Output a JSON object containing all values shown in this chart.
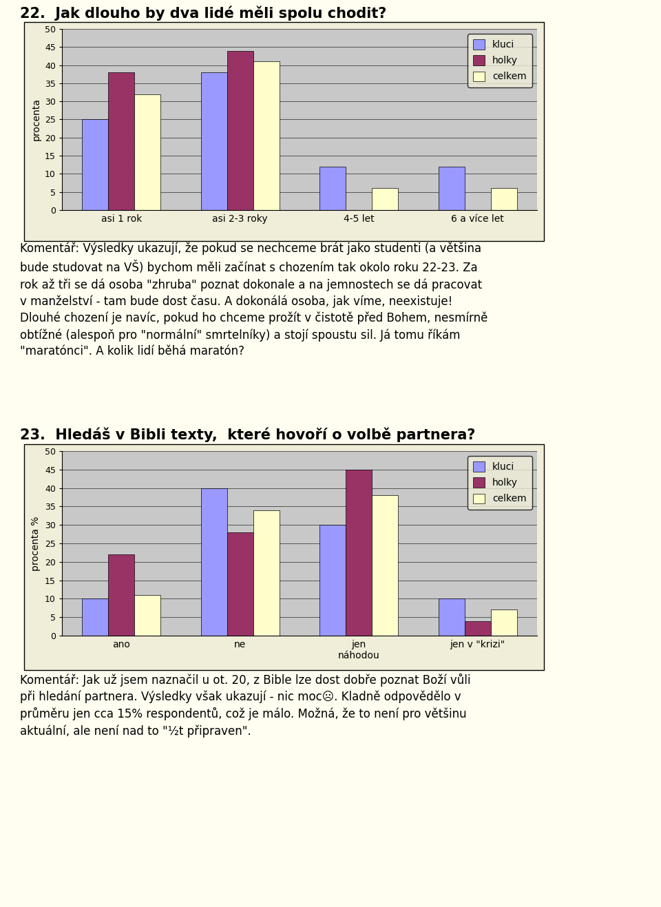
{
  "chart1": {
    "title": "22.  Jak dlouho by dva lidé měli spolu chodit?",
    "categories": [
      "asi 1 rok",
      "asi 2-3 roky",
      "4-5 let",
      "6 a více let"
    ],
    "kluci": [
      25,
      38,
      12,
      12
    ],
    "holky": [
      38,
      44,
      0,
      0
    ],
    "celkem": [
      32,
      41,
      6,
      6
    ],
    "ylabel": "procenta",
    "ylim": [
      0,
      50
    ],
    "yticks": [
      0,
      5,
      10,
      15,
      20,
      25,
      30,
      35,
      40,
      45,
      50
    ]
  },
  "chart2": {
    "title": "23.  Hledáš v Bibli texty,  které hovoří o volbě partnera?",
    "categories": [
      "ano",
      "ne",
      "jen\nnáhodou",
      "jen v \"krizi\""
    ],
    "kluci": [
      10,
      40,
      30,
      10
    ],
    "holky": [
      22,
      28,
      45,
      4
    ],
    "celkem": [
      11,
      34,
      38,
      7
    ],
    "ylabel": "procenta %",
    "ylim": [
      0,
      50
    ],
    "yticks": [
      0,
      5,
      10,
      15,
      20,
      25,
      30,
      35,
      40,
      45,
      50
    ]
  },
  "comment1": "Komentář: Výsledky ukazují, že pokud se nechceme brát jako studenti (a většina\nbude studovat na VŠ) bychom měli začínat s chozením tak okolo roku 22-23. Za\nrok až tři se dá osoba \"zhruba\" poznat dokonale a na jemnostech se dá pracovat\nv manželství - tam bude dost času. A dokonálá osoba, jak víme, neexistuje!\nDlouhé chození je navíc, pokud ho chceme prožít v čistotě před Bohem, nesmírně\nobtížné (alespoň pro \"normální\" smrtelníky) a stojí spoustu sil. Já tomu říkám\n\"maratónci\". A kolik lidí běhá maratón?",
  "comment2": "Komentář: Jak už jsem naznačil u ot. 20, z Bible lze dost dobře poznat Boží vůli\npři hledání partnera. Výsledky však ukazují - nic moc☹. Kladně odpovědělo v\nprůměru jen cca 15% respondentů, což je málo. Možná, že to není pro většinu\naktuální, ale není nad to \"½t připraven\".",
  "bar_colors": {
    "kluci": "#9999FF",
    "holky": "#993366",
    "celkem": "#FFFFCC"
  },
  "chart_bg": "#C8C8C8",
  "page_bg": "#FFFEF0",
  "border_color": "#000000",
  "chart_border_bg": "#F5F5DC"
}
